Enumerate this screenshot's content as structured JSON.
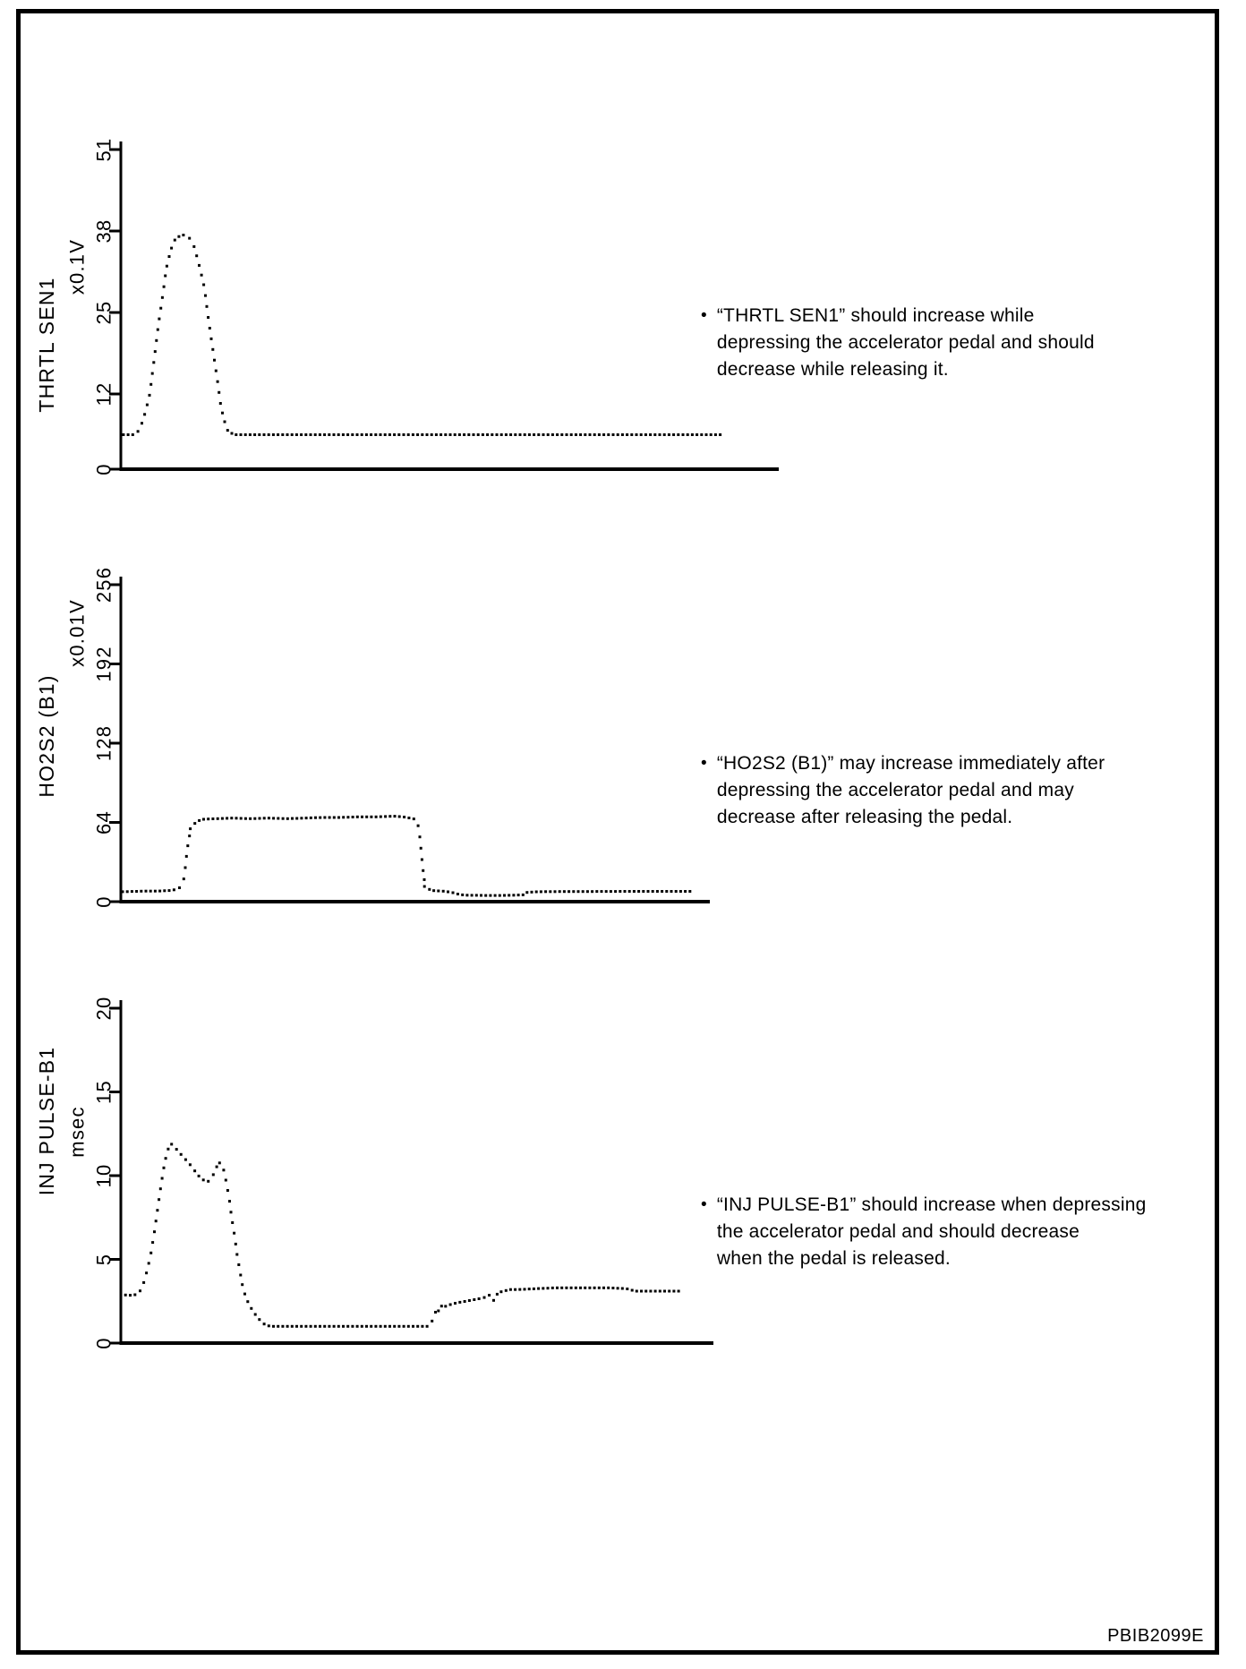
{
  "page": {
    "code": "PBIB2099E",
    "bullet_char": "•",
    "background": "#ffffff",
    "ink": "#000000"
  },
  "chart_data": [
    {
      "type": "line",
      "style": "dotted-recorder-trace",
      "name": "THRTL SEN1",
      "unit": "x0.1V",
      "yticks": [
        0,
        12,
        25,
        38,
        51
      ],
      "ylim": [
        0,
        51
      ],
      "x_units": "percent-of-timeline",
      "grid": false,
      "points": [
        [
          0.4,
          5.5
        ],
        [
          2.0,
          5.5
        ],
        [
          2.9,
          6.3
        ],
        [
          3.7,
          9
        ],
        [
          4.4,
          12
        ],
        [
          5.0,
          17
        ],
        [
          5.7,
          23
        ],
        [
          6.4,
          28
        ],
        [
          6.9,
          32
        ],
        [
          7.6,
          35
        ],
        [
          8.3,
          36.8
        ],
        [
          9.3,
          37.4
        ],
        [
          10.2,
          37.2
        ],
        [
          11.0,
          36
        ],
        [
          11.8,
          33
        ],
        [
          12.7,
          29
        ],
        [
          13.3,
          24
        ],
        [
          14.0,
          19
        ],
        [
          14.7,
          14
        ],
        [
          15.2,
          10
        ],
        [
          15.8,
          7.5
        ],
        [
          16.3,
          6
        ],
        [
          17.3,
          5.5
        ],
        [
          91.4,
          5.5
        ]
      ],
      "annotation": [
        "“THRTL SEN1” should increase while",
        "depressing the accelerator pedal and should",
        "decrease while releasing it."
      ]
    },
    {
      "type": "line",
      "style": "dotted-recorder-trace",
      "name": "HO2S2 (B1)",
      "unit": "x0.01V",
      "yticks": [
        0,
        64,
        128,
        192,
        256
      ],
      "ylim": [
        0,
        256
      ],
      "x_units": "percent-of-timeline",
      "grid": false,
      "points": [
        [
          0.3,
          8
        ],
        [
          3.8,
          8.5
        ],
        [
          6.1,
          8.5
        ],
        [
          8.4,
          9
        ],
        [
          9.6,
          10
        ],
        [
          10.5,
          13
        ],
        [
          10.9,
          25
        ],
        [
          11.2,
          40
        ],
        [
          11.6,
          52
        ],
        [
          12.0,
          60
        ],
        [
          12.8,
          64.5
        ],
        [
          13.8,
          66.5
        ],
        [
          16.0,
          67
        ],
        [
          19.0,
          67.5
        ],
        [
          22.0,
          67
        ],
        [
          25.1,
          67.5
        ],
        [
          28.1,
          67
        ],
        [
          31.2,
          67.5
        ],
        [
          34.2,
          68
        ],
        [
          37.2,
          68
        ],
        [
          40.3,
          68.5
        ],
        [
          43.3,
          68.5
        ],
        [
          46.4,
          69
        ],
        [
          47.9,
          68.5
        ],
        [
          49.1,
          67.5
        ],
        [
          50.0,
          66.5
        ],
        [
          50.6,
          60
        ],
        [
          50.9,
          45
        ],
        [
          51.2,
          30
        ],
        [
          51.5,
          18
        ],
        [
          52.0,
          11
        ],
        [
          52.7,
          9
        ],
        [
          54.7,
          8.5
        ],
        [
          56.2,
          7.5
        ],
        [
          57.3,
          6
        ],
        [
          58.5,
          5.2
        ],
        [
          62.3,
          5
        ],
        [
          64.6,
          5
        ],
        [
          66.9,
          5.2
        ],
        [
          68.4,
          5.5
        ],
        [
          69.1,
          7.5
        ],
        [
          70.7,
          8
        ],
        [
          75.2,
          8.2
        ],
        [
          79.8,
          8.2
        ],
        [
          85.9,
          8.3
        ],
        [
          91.9,
          8.3
        ],
        [
          96.8,
          8.3
        ]
      ],
      "annotation": [
        "“HO2S2 (B1)” may increase immediately after",
        "depressing the accelerator pedal and may",
        "decrease after releasing the pedal."
      ]
    },
    {
      "type": "line",
      "style": "dotted-recorder-trace",
      "name": "INJ PULSE-B1",
      "unit": "msec",
      "yticks": [
        0,
        5,
        10,
        15,
        20
      ],
      "ylim": [
        0,
        20
      ],
      "x_units": "percent-of-timeline",
      "grid": false,
      "points": [
        [
          0,
          2.9
        ],
        [
          1.5,
          2.85
        ],
        [
          2.6,
          2.9
        ],
        [
          3.5,
          3.2
        ],
        [
          4.2,
          4
        ],
        [
          5.0,
          5.2
        ],
        [
          5.6,
          6.5
        ],
        [
          6.2,
          8
        ],
        [
          6.8,
          9.5
        ],
        [
          7.4,
          10.8
        ],
        [
          8.0,
          11.6
        ],
        [
          8.5,
          11.9
        ],
        [
          9.1,
          11.7
        ],
        [
          9.8,
          11.4
        ],
        [
          10.6,
          11.1
        ],
        [
          11.3,
          10.8
        ],
        [
          12.1,
          10.5
        ],
        [
          12.8,
          10.1
        ],
        [
          13.7,
          9.8
        ],
        [
          14.5,
          9.6
        ],
        [
          15.3,
          9.8
        ],
        [
          15.9,
          10.3
        ],
        [
          16.5,
          10.8
        ],
        [
          16.9,
          10.7
        ],
        [
          17.4,
          10.3
        ],
        [
          17.8,
          9.6
        ],
        [
          18.3,
          8.6
        ],
        [
          18.7,
          7.5
        ],
        [
          19.2,
          6.4
        ],
        [
          19.6,
          5.3
        ],
        [
          20.1,
          4.3
        ],
        [
          20.5,
          3.5
        ],
        [
          21.1,
          2.7
        ],
        [
          21.8,
          2.2
        ],
        [
          22.5,
          1.8
        ],
        [
          23.4,
          1.4
        ],
        [
          24.3,
          1.1
        ],
        [
          25.2,
          1.0
        ],
        [
          52.1,
          1.0
        ],
        [
          52.9,
          1.6
        ],
        [
          53.3,
          2.1
        ],
        [
          53.8,
          1.8
        ],
        [
          54.2,
          2.3
        ],
        [
          54.8,
          2.2
        ],
        [
          55.6,
          2.3
        ],
        [
          56.6,
          2.4
        ],
        [
          58.2,
          2.5
        ],
        [
          59.7,
          2.6
        ],
        [
          61.2,
          2.7
        ],
        [
          62.4,
          2.9
        ],
        [
          63.0,
          2.5
        ],
        [
          63.6,
          3.0
        ],
        [
          64.5,
          3.1
        ],
        [
          65.7,
          3.2
        ],
        [
          67.2,
          3.2
        ],
        [
          70.2,
          3.25
        ],
        [
          73.3,
          3.3
        ],
        [
          76.3,
          3.3
        ],
        [
          79.3,
          3.3
        ],
        [
          82.3,
          3.3
        ],
        [
          85.3,
          3.25
        ],
        [
          86.9,
          3.1
        ],
        [
          88.4,
          3.1
        ],
        [
          91.4,
          3.1
        ],
        [
          94.6,
          3.1
        ]
      ],
      "annotation": [
        "“INJ PULSE-B1” should increase when depressing",
        "the accelerator pedal and should decrease",
        "when the pedal is released."
      ]
    }
  ]
}
